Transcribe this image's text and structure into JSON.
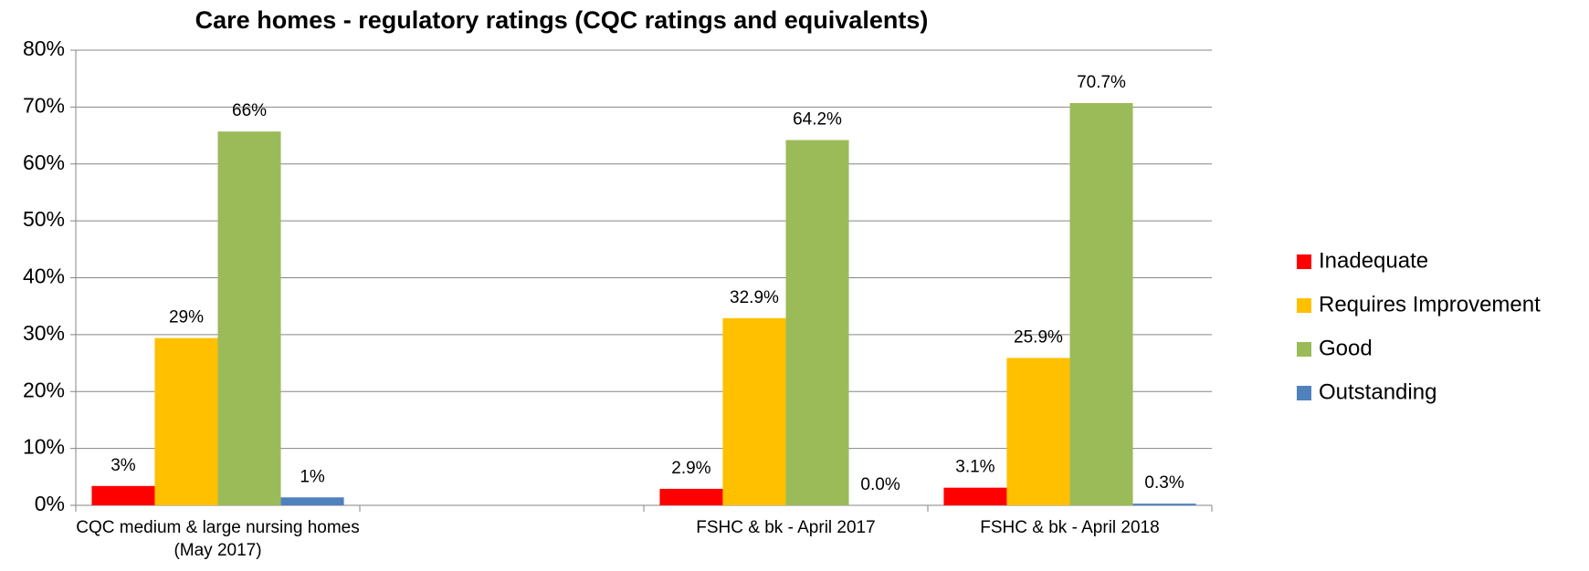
{
  "chart_data": {
    "type": "bar",
    "title": "Care homes - regulatory ratings (CQC ratings and equivalents)",
    "categories": [
      "CQC medium & large nursing homes (May 2017)",
      null,
      "FSHC & bk - April 2017",
      "FSHC & bk - April 2018"
    ],
    "series": [
      {
        "name": "Inadequate",
        "color": "#ff0000",
        "values": [
          3.4,
          null,
          2.9,
          3.1
        ],
        "value_labels": [
          "3%",
          null,
          "2.9%",
          "3.1%"
        ]
      },
      {
        "name": "Requires Improvement",
        "color": "#ffc000",
        "values": [
          29.4,
          null,
          32.9,
          25.9
        ],
        "value_labels": [
          "29%",
          null,
          "32.9%",
          "25.9%"
        ]
      },
      {
        "name": "Good",
        "color": "#9bbb59",
        "values": [
          65.7,
          null,
          64.2,
          70.7
        ],
        "value_labels": [
          "66%",
          null,
          "64.2%",
          "70.7%"
        ]
      },
      {
        "name": "Outstanding",
        "color": "#4f81bd",
        "values": [
          1.4,
          null,
          0.0,
          0.3
        ],
        "value_labels": [
          "1%",
          null,
          "0.0%",
          "0.3%"
        ]
      }
    ],
    "ylim": [
      0,
      80
    ],
    "yticks": [
      {
        "value": 0,
        "label": "0%"
      },
      {
        "value": 10,
        "label": "10%"
      },
      {
        "value": 20,
        "label": "20%"
      },
      {
        "value": 30,
        "label": "30%"
      },
      {
        "value": 40,
        "label": "40%"
      },
      {
        "value": 50,
        "label": "50%"
      },
      {
        "value": 60,
        "label": "60%"
      },
      {
        "value": 70,
        "label": "70%"
      },
      {
        "value": 80,
        "label": "80%"
      }
    ],
    "grid": true,
    "legend": "right"
  }
}
